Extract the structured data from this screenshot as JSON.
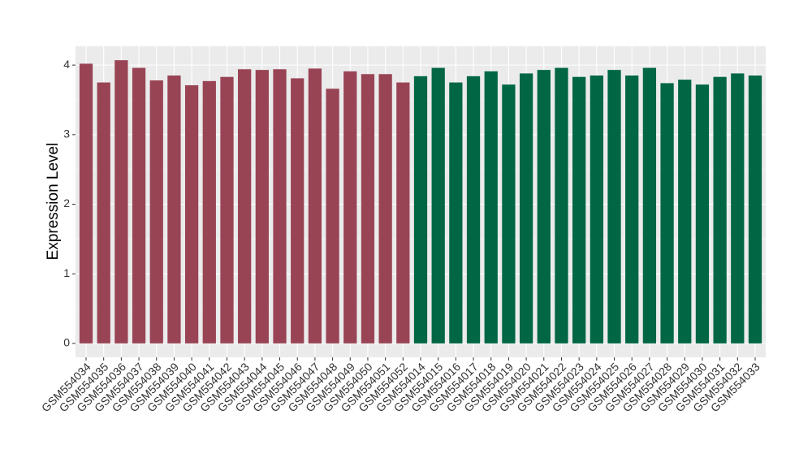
{
  "chart_data": {
    "type": "bar",
    "y_label": "Expression Level",
    "categories": [
      "GSM554034",
      "GSM554035",
      "GSM554036",
      "GSM554037",
      "GSM554038",
      "GSM554039",
      "GSM554040",
      "GSM554041",
      "GSM554042",
      "GSM554043",
      "GSM554044",
      "GSM554045",
      "GSM554046",
      "GSM554047",
      "GSM554048",
      "GSM554049",
      "GSM554050",
      "GSM554051",
      "GSM554052",
      "GSM554014",
      "GSM554015",
      "GSM554016",
      "GSM554017",
      "GSM554018",
      "GSM554019",
      "GSM554020",
      "GSM554021",
      "GSM554022",
      "GSM554023",
      "GSM554024",
      "GSM554025",
      "GSM554026",
      "GSM554027",
      "GSM554028",
      "GSM554029",
      "GSM554030",
      "GSM554031",
      "GSM554032",
      "GSM554033"
    ],
    "values": [
      4.02,
      3.75,
      4.07,
      3.96,
      3.78,
      3.85,
      3.71,
      3.77,
      3.83,
      3.94,
      3.93,
      3.94,
      3.81,
      3.95,
      3.66,
      3.91,
      3.87,
      3.87,
      3.75,
      3.84,
      3.96,
      3.75,
      3.84,
      3.91,
      3.72,
      3.88,
      3.93,
      3.96,
      3.83,
      3.85,
      3.93,
      3.85,
      3.96,
      3.74,
      3.79,
      3.72,
      3.83,
      3.88,
      3.85
    ],
    "colors": [
      "#994455",
      "#994455",
      "#994455",
      "#994455",
      "#994455",
      "#994455",
      "#994455",
      "#994455",
      "#994455",
      "#994455",
      "#994455",
      "#994455",
      "#994455",
      "#994455",
      "#994455",
      "#994455",
      "#994455",
      "#994455",
      "#994455",
      "#006644",
      "#006644",
      "#006644",
      "#006644",
      "#006644",
      "#006644",
      "#006644",
      "#006644",
      "#006644",
      "#006644",
      "#006644",
      "#006644",
      "#006644",
      "#006644",
      "#006644",
      "#006644",
      "#006644",
      "#006644",
      "#006644",
      "#006644"
    ],
    "ylim": [
      -0.2,
      4.27
    ],
    "yticks": [
      0,
      1,
      2,
      3,
      4
    ],
    "grid": true
  }
}
